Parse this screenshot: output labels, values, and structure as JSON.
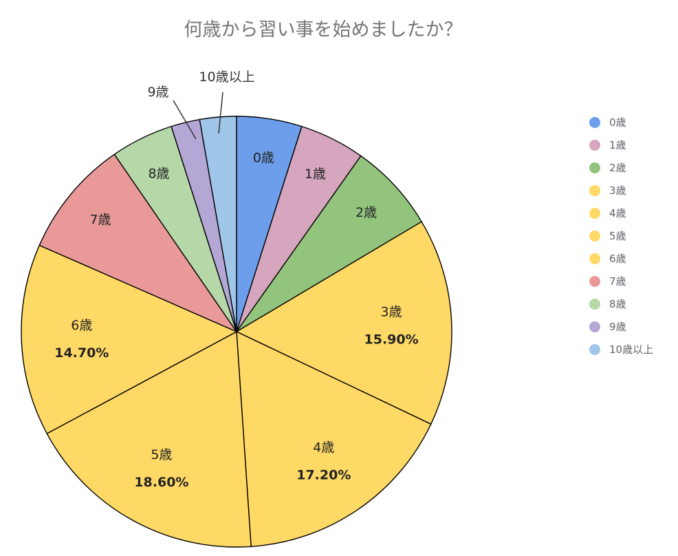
{
  "chart_data": {
    "type": "pie",
    "title": "何歳から習い事を始めましたか？",
    "legend_position": "right",
    "slices": [
      {
        "label": "0歳",
        "value": 5.0,
        "value_label": "",
        "color": "#6d9eeb"
      },
      {
        "label": "1歳",
        "value": 5.0,
        "value_label": "",
        "color": "#d5a6bd"
      },
      {
        "label": "2歳",
        "value": 6.8,
        "value_label": "",
        "color": "#93c47d"
      },
      {
        "label": "3歳",
        "value": 15.9,
        "value_label": "15.90%",
        "color": "#ffd966"
      },
      {
        "label": "4歳",
        "value": 17.2,
        "value_label": "17.20%",
        "color": "#ffd966"
      },
      {
        "label": "5歳",
        "value": 18.6,
        "value_label": "18.60%",
        "color": "#ffd966"
      },
      {
        "label": "6歳",
        "value": 14.7,
        "value_label": "14.70%",
        "color": "#ffd966"
      },
      {
        "label": "7歳",
        "value": 9.0,
        "value_label": "",
        "color": "#ea9999"
      },
      {
        "label": "8歳",
        "value": 4.8,
        "value_label": "",
        "color": "#b6d7a8"
      },
      {
        "label": "9歳",
        "value": 2.2,
        "value_label": "",
        "color": "#b4a7d6"
      },
      {
        "label": "10歳以上",
        "value": 2.8,
        "value_label": "",
        "color": "#9fc5e8"
      }
    ],
    "outer_labels": [
      "9歳",
      "10歳以上"
    ]
  }
}
